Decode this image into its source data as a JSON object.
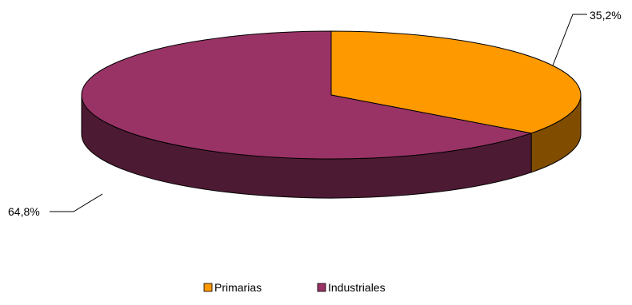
{
  "chart_data": {
    "type": "pie",
    "style": "3d",
    "title": "",
    "slices": [
      {
        "name": "Primarias",
        "value": 35.2,
        "label": "35,2%",
        "color": "#FF9900",
        "side_color": "#7F4C00"
      },
      {
        "name": "Industriales",
        "value": 64.8,
        "label": "64,8%",
        "color": "#993366",
        "side_color": "#4D1A33"
      }
    ],
    "legend": {
      "position": "bottom",
      "items": [
        {
          "name": "Primarias",
          "label": "Primarias",
          "color": "#FF9900"
        },
        {
          "name": "Industriales",
          "label": "Industriales",
          "color": "#993366"
        }
      ]
    }
  }
}
